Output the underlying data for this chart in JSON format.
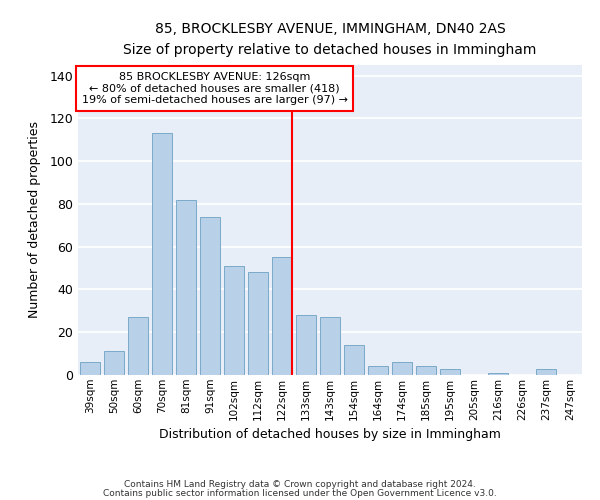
{
  "title": "85, BROCKLESBY AVENUE, IMMINGHAM, DN40 2AS",
  "subtitle": "Size of property relative to detached houses in Immingham",
  "xlabel": "Distribution of detached houses by size in Immingham",
  "ylabel": "Number of detached properties",
  "categories": [
    "39sqm",
    "50sqm",
    "60sqm",
    "70sqm",
    "81sqm",
    "91sqm",
    "102sqm",
    "112sqm",
    "122sqm",
    "133sqm",
    "143sqm",
    "154sqm",
    "164sqm",
    "174sqm",
    "185sqm",
    "195sqm",
    "205sqm",
    "216sqm",
    "226sqm",
    "237sqm",
    "247sqm"
  ],
  "values": [
    6,
    11,
    27,
    113,
    82,
    74,
    51,
    48,
    55,
    28,
    27,
    14,
    4,
    6,
    4,
    3,
    0,
    1,
    0,
    3,
    0
  ],
  "bar_color": "#b8d0e8",
  "bar_edgecolor": "#7aaac8",
  "background_color": "#e8eef8",
  "grid_color": "#ffffff",
  "ylim": [
    0,
    145
  ],
  "yticks": [
    0,
    20,
    40,
    60,
    80,
    100,
    120,
    140
  ],
  "annotation_line1": "85 BROCKLESBY AVENUE: 126sqm",
  "annotation_line2": "← 80% of detached houses are smaller (418)",
  "annotation_line3": "19% of semi-detached houses are larger (97) →",
  "vline_pos": 8.5,
  "footer_line1": "Contains HM Land Registry data © Crown copyright and database right 2024.",
  "footer_line2": "Contains public sector information licensed under the Open Government Licence v3.0."
}
